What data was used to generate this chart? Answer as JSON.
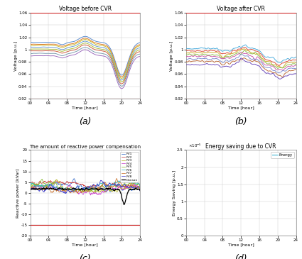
{
  "title_a": "Voltage before CVR",
  "title_b": "Voltage after CVR",
  "title_c": "The amount of reactive power compensation",
  "title_d": "Energy saving due to CVR",
  "xlabel": "Time [hour]",
  "ylabel_a": "Voltage [p.u.]",
  "ylabel_b": "Voltage [p.u.]",
  "ylabel_c": "Reactive power [kVar]",
  "ylabel_d": "Energy Saving [p.u.]",
  "label_a": "(a)",
  "label_b": "(b)",
  "label_c": "(c)",
  "label_d": "(d)",
  "xticks": [
    0,
    4,
    8,
    12,
    16,
    20,
    24
  ],
  "xticklabels": [
    "00",
    "04",
    "08",
    "12",
    "16",
    "20",
    "24"
  ],
  "ylim_ab": [
    0.92,
    1.06
  ],
  "ylim_c": [
    -20,
    20
  ],
  "ylim_d": [
    0,
    2.5
  ],
  "hline_upper": 1.06,
  "hline_lower_ab": 0.92,
  "hline_lower_c": -15,
  "hline_color": "#cc2222",
  "voltage_colors_a": [
    "#5588cc",
    "#dd7722",
    "#ccbb22",
    "#6699cc",
    "#aabb33",
    "#cc5533",
    "#7799aa",
    "#9966bb"
  ],
  "voltage_colors_b": [
    "#44aadd",
    "#dd4433",
    "#ccaa22",
    "#88bb44",
    "#cc55aa",
    "#7788cc",
    "#bb6633",
    "#6644bb"
  ],
  "pv_colors": [
    "#4477cc",
    "#cc4444",
    "#bbbb33",
    "#cc44cc",
    "#88bb33",
    "#33bbbb",
    "#cc7733",
    "#4444cc"
  ],
  "pv_labels": [
    "PV1",
    "PV2",
    "PV3",
    "PV4",
    "PV5",
    "PV6",
    "PV7",
    "PV8",
    "Donsan"
  ],
  "energy_color": "#22aacc",
  "energy_label": "Energy",
  "bg_color": "#f8f8f8"
}
